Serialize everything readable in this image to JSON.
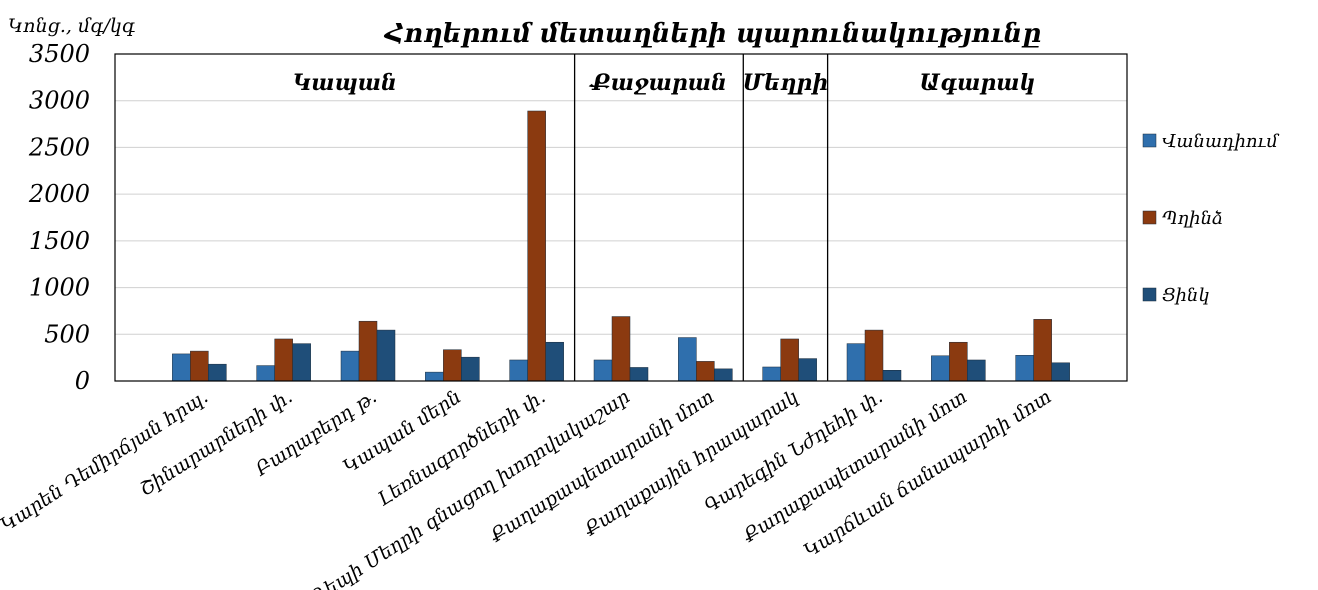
{
  "chart_data": {
    "type": "bar",
    "title": "Հողերում մետաղների պարունակությունը",
    "ylabel": "Կոնց., մգ/կգ",
    "xlabel": "",
    "ylim": [
      0,
      3500
    ],
    "yticks": [
      0,
      500,
      1000,
      1500,
      2000,
      2500,
      3000,
      3500
    ],
    "grid": true,
    "legend_position": "right",
    "categories": [
      "Կարեն Դեմիրճյան հրպ.",
      "Շինարարների փ.",
      "Բաղաբերդ թ.",
      "Կապան մերն",
      "Լեռնագործների փ.",
      "Դեպի Մեղրի գնացող խողովակաշար",
      "Քաղաքապետարանի մոտ",
      "Քաղաքային հրապարակ",
      "Գարեգին Նժդեհի փ.",
      "Քաղաքապետարանի մոտ",
      "Կարճևան ճանապարհի մոտ"
    ],
    "series": [
      {
        "name": "Վանադիում",
        "color": "#2f6fad",
        "values": [
          290,
          165,
          320,
          95,
          225,
          225,
          465,
          150,
          400,
          270,
          275
        ]
      },
      {
        "name": "Պղինձ",
        "color": "#8b3a10",
        "values": [
          320,
          450,
          640,
          335,
          2890,
          690,
          210,
          450,
          545,
          415,
          660
        ]
      },
      {
        "name": "Ցինկ",
        "color": "#1f4e79",
        "values": [
          180,
          400,
          545,
          255,
          415,
          145,
          130,
          240,
          115,
          225,
          195
        ]
      }
    ],
    "regions": [
      {
        "label": "Կապան",
        "start_category": 0,
        "end_category": 4
      },
      {
        "label": "Քաջարան",
        "start_category": 4,
        "end_category": 6
      },
      {
        "label": "Մեղրի",
        "start_category": 6,
        "end_category": 7
      },
      {
        "label": "Ագարակ",
        "start_category": 7,
        "end_category": 10
      }
    ]
  }
}
